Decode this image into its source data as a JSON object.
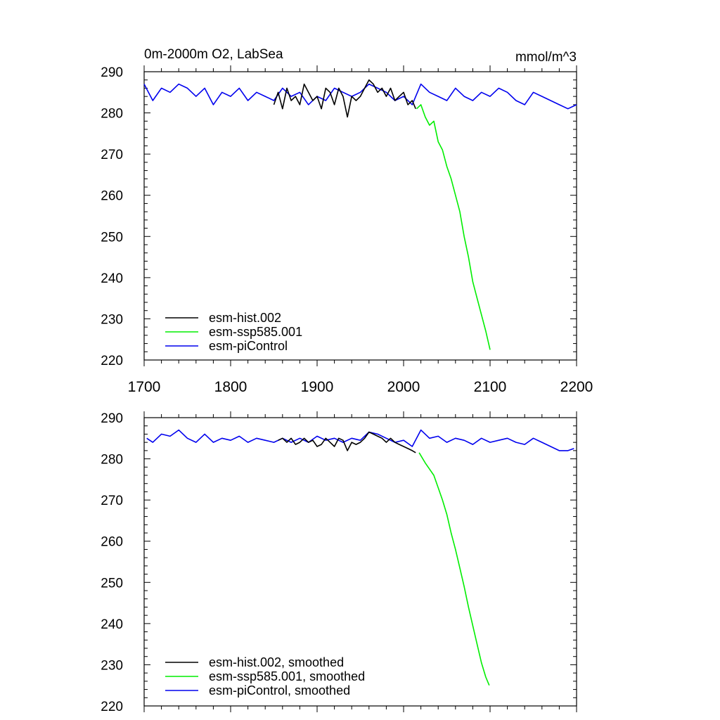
{
  "chart_data": [
    {
      "type": "line",
      "title": "0m-2000m O2, LabSea",
      "units": "mmol/m^3",
      "xlim": [
        1700,
        2200
      ],
      "ylim": [
        220,
        290
      ],
      "x_ticks": [
        "1700",
        "1800",
        "1900",
        "2000",
        "2100",
        "2200"
      ],
      "y_ticks": [
        "220",
        "230",
        "240",
        "250",
        "260",
        "270",
        "280",
        "290"
      ],
      "legend_position": "bottom-left",
      "series": [
        {
          "name": "esm-hist.002",
          "color": "#000000",
          "x": [
            1850,
            1855,
            1860,
            1865,
            1870,
            1875,
            1880,
            1885,
            1890,
            1895,
            1900,
            1905,
            1910,
            1915,
            1920,
            1925,
            1930,
            1935,
            1940,
            1945,
            1950,
            1955,
            1960,
            1965,
            1970,
            1975,
            1980,
            1985,
            1990,
            1995,
            2000,
            2005,
            2010,
            2014
          ],
          "y": [
            282,
            285,
            281,
            286,
            283,
            284,
            282,
            287,
            285,
            283,
            284,
            281,
            286,
            285,
            282,
            286,
            284,
            279,
            284,
            283,
            284,
            286,
            288,
            287,
            285,
            286,
            284,
            286,
            283,
            284,
            285,
            282,
            283,
            281
          ]
        },
        {
          "name": "esm-ssp585.001",
          "color": "#00ee00",
          "x": [
            2015,
            2020,
            2025,
            2030,
            2035,
            2040,
            2045,
            2050,
            2055,
            2060,
            2065,
            2070,
            2075,
            2080,
            2085,
            2090,
            2095,
            2100
          ],
          "y": [
            281,
            282,
            279,
            277,
            278,
            273,
            271,
            267,
            264,
            260,
            256,
            250,
            245,
            239,
            235,
            231,
            227,
            222.5
          ]
        },
        {
          "name": "esm-piControl",
          "color": "#0000ee",
          "x": [
            1700,
            1710,
            1720,
            1730,
            1740,
            1750,
            1760,
            1770,
            1780,
            1790,
            1800,
            1810,
            1820,
            1830,
            1840,
            1850,
            1860,
            1870,
            1880,
            1890,
            1900,
            1910,
            1920,
            1930,
            1940,
            1950,
            1960,
            1970,
            1980,
            1990,
            2000,
            2010,
            2020,
            2030,
            2040,
            2050,
            2060,
            2070,
            2080,
            2090,
            2100,
            2110,
            2120,
            2130,
            2140,
            2150,
            2160,
            2170,
            2180,
            2190,
            2200
          ],
          "y": [
            287,
            283,
            286,
            285,
            287,
            286,
            284,
            286,
            282,
            285,
            284,
            286,
            283,
            285,
            284,
            283,
            286,
            284,
            285,
            282,
            284,
            283,
            286,
            285,
            284,
            285,
            287,
            286,
            285,
            283,
            284,
            282,
            287,
            285,
            284,
            283,
            286,
            284,
            283,
            285,
            284,
            286,
            285,
            283,
            282,
            285,
            284,
            283,
            282,
            281,
            282
          ]
        }
      ]
    },
    {
      "type": "line",
      "title": "",
      "units": "",
      "xlim": [
        1700,
        2200
      ],
      "ylim": [
        220,
        290
      ],
      "x_ticks": [],
      "y_ticks": [
        "220",
        "230",
        "240",
        "250",
        "260",
        "270",
        "280",
        "290"
      ],
      "legend_position": "bottom-left",
      "series": [
        {
          "name": "esm-hist.002, smoothed",
          "color": "#000000",
          "x": [
            1855,
            1860,
            1865,
            1870,
            1875,
            1880,
            1885,
            1890,
            1895,
            1900,
            1905,
            1910,
            1915,
            1920,
            1925,
            1930,
            1935,
            1940,
            1945,
            1950,
            1955,
            1960,
            1965,
            1970,
            1975,
            1980,
            1985,
            1990,
            1995,
            2000,
            2005,
            2010,
            2014
          ],
          "y": [
            284.5,
            285,
            284,
            285,
            283.5,
            284,
            285,
            284,
            284.5,
            283,
            283.5,
            285,
            284,
            283,
            285,
            284.5,
            282,
            284,
            283.5,
            284,
            285,
            286.5,
            286,
            285.5,
            285,
            284,
            285,
            284,
            283.5,
            283,
            282.5,
            282,
            281.5
          ]
        },
        {
          "name": "esm-ssp585.001, smoothed",
          "color": "#00ee00",
          "x": [
            2018,
            2025,
            2030,
            2035,
            2040,
            2045,
            2050,
            2055,
            2060,
            2065,
            2070,
            2075,
            2080,
            2085,
            2090,
            2095,
            2099
          ],
          "y": [
            281.5,
            279,
            277.5,
            276,
            273,
            270,
            266.5,
            262,
            258,
            253.5,
            249,
            244,
            239.5,
            235,
            230.5,
            227,
            225
          ]
        },
        {
          "name": "esm-piControl, smoothed",
          "color": "#0000ee",
          "x": [
            1703,
            1710,
            1720,
            1730,
            1740,
            1750,
            1760,
            1770,
            1780,
            1790,
            1800,
            1810,
            1820,
            1830,
            1840,
            1850,
            1860,
            1870,
            1880,
            1890,
            1900,
            1910,
            1920,
            1930,
            1940,
            1950,
            1960,
            1970,
            1980,
            1990,
            2000,
            2010,
            2020,
            2030,
            2040,
            2050,
            2060,
            2070,
            2080,
            2090,
            2100,
            2110,
            2120,
            2130,
            2140,
            2150,
            2160,
            2170,
            2180,
            2190,
            2197
          ],
          "y": [
            285,
            284,
            286,
            285.5,
            287,
            285,
            284,
            286,
            284,
            285,
            284.5,
            285.5,
            284,
            285,
            284.5,
            284,
            285,
            284,
            285,
            284,
            285.5,
            284.5,
            285,
            284,
            285,
            284.5,
            286.5,
            286,
            285,
            284,
            284.5,
            283,
            287,
            285,
            285.5,
            284,
            285,
            284.5,
            283.5,
            285,
            284,
            284.5,
            285,
            284,
            283.5,
            285,
            284,
            283,
            282,
            282,
            282.5
          ]
        }
      ]
    }
  ]
}
